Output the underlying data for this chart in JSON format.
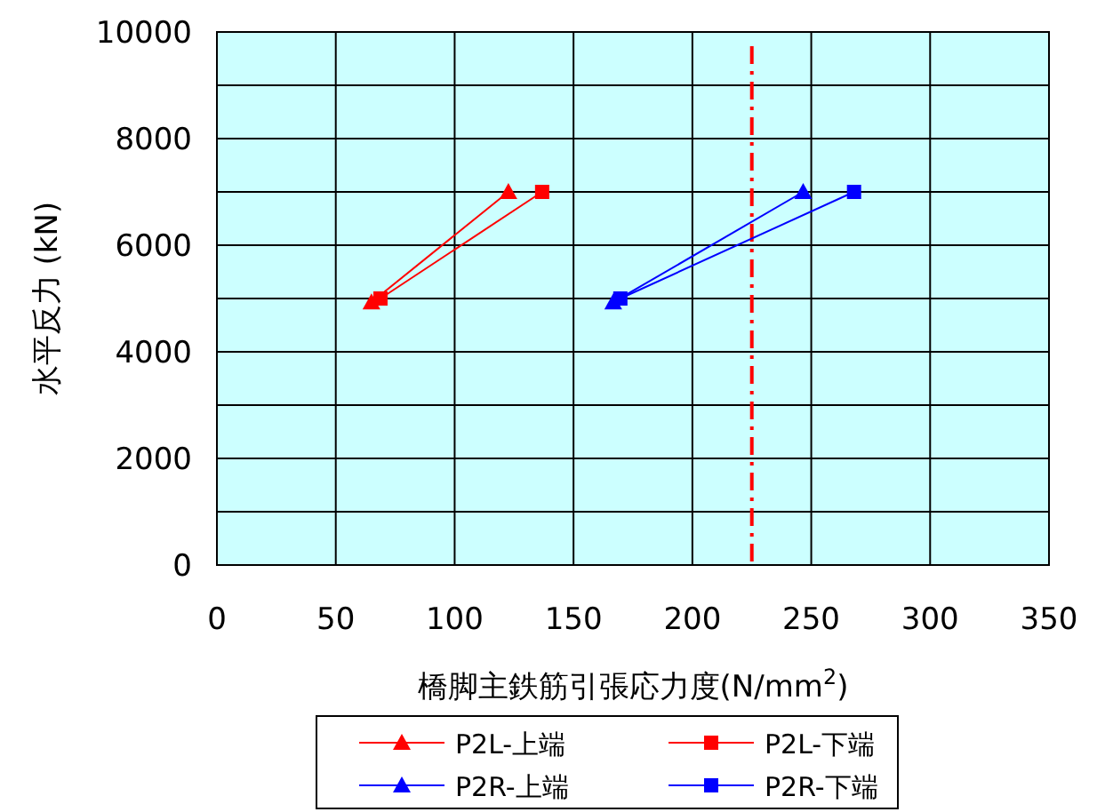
{
  "chart_data": {
    "type": "line",
    "xlabel": "橋脚主鉄筋引張応力度(N/mm$^{2}$)",
    "ylabel": "水平反力 (kN)",
    "xlim": [
      0,
      350
    ],
    "xticks": [
      0,
      50,
      100,
      150,
      200,
      250,
      300,
      350
    ],
    "ylim": [
      0,
      10000
    ],
    "yticks": [
      0,
      {
        "value": 1000,
        "label": null
      },
      2000,
      {
        "value": 3000,
        "label": null
      },
      4000,
      {
        "value": 5000,
        "label": null
      },
      6000,
      {
        "value": 7000,
        "label": null
      },
      8000,
      {
        "value": 9000,
        "label": null
      },
      10000
    ],
    "grid": true,
    "legend": "bottom",
    "series": [
      {
        "name": "P2L-上端",
        "color": "#ff0000",
        "marker": "triangle",
        "x": [
          65,
          122.6
        ],
        "values": [
          4930,
          7000
        ]
      },
      {
        "name": "P2L-下端",
        "color": "#ff0000",
        "marker": "square",
        "x": [
          68.8,
          136.8
        ],
        "values": [
          5000,
          7000
        ]
      },
      {
        "name": "P2R-上端",
        "color": "#0000ff",
        "marker": "triangle",
        "x": [
          166.7,
          246.6
        ],
        "values": [
          4930,
          7000
        ]
      },
      {
        "name": "P2R-下端",
        "color": "#0000ff",
        "marker": "square",
        "x": [
          169.7,
          268
        ],
        "values": [
          5000,
          7000
        ]
      }
    ],
    "ref_lines": [
      {
        "axis": "x",
        "value": 225,
        "label": null,
        "color": "#ff0000",
        "line_style": "dashdot"
      }
    ]
  }
}
